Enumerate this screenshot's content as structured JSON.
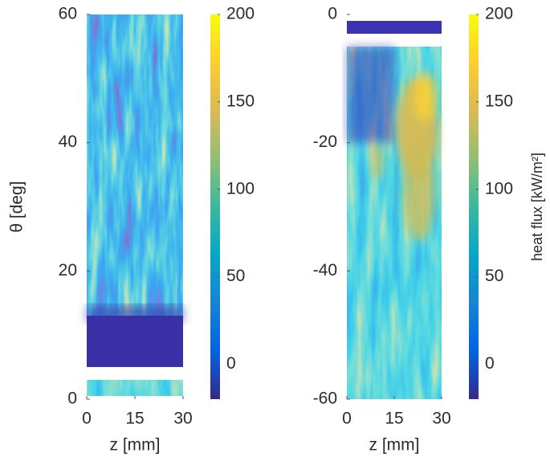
{
  "chart_data": [
    {
      "type": "heatmap",
      "xlabel": "z [mm]",
      "ylabel": "θ [deg]",
      "xlim": [
        0,
        30
      ],
      "xticks": [
        0,
        15,
        30
      ],
      "ylim": [
        0,
        60
      ],
      "yticks": [
        0,
        20,
        40,
        60
      ],
      "colorbar": {
        "clim": [
          -20,
          200
        ],
        "ticks": [
          0,
          50,
          100,
          150,
          200
        ]
      },
      "colormap": [
        "#352a87",
        "#0363e1",
        "#1485d4",
        "#06a7c6",
        "#38b99e",
        "#92bf73",
        "#d9ba56",
        "#fcce2e",
        "#f9fb0e"
      ]
    },
    {
      "type": "heatmap",
      "xlabel": "z [mm]",
      "xlim": [
        0,
        30
      ],
      "xticks": [
        0,
        15,
        30
      ],
      "ylim": [
        -60,
        0
      ],
      "yticks": [
        -60,
        -40,
        -20,
        0
      ],
      "colorbar": {
        "clim": [
          -20,
          200
        ],
        "ticks": [
          0,
          50,
          100,
          150,
          200
        ],
        "label": "heat flux [kW/m²]"
      },
      "colormap": [
        "#352a87",
        "#0363e1",
        "#1485d4",
        "#06a7c6",
        "#38b99e",
        "#92bf73",
        "#d9ba56",
        "#fcce2e",
        "#f9fb0e"
      ]
    }
  ]
}
